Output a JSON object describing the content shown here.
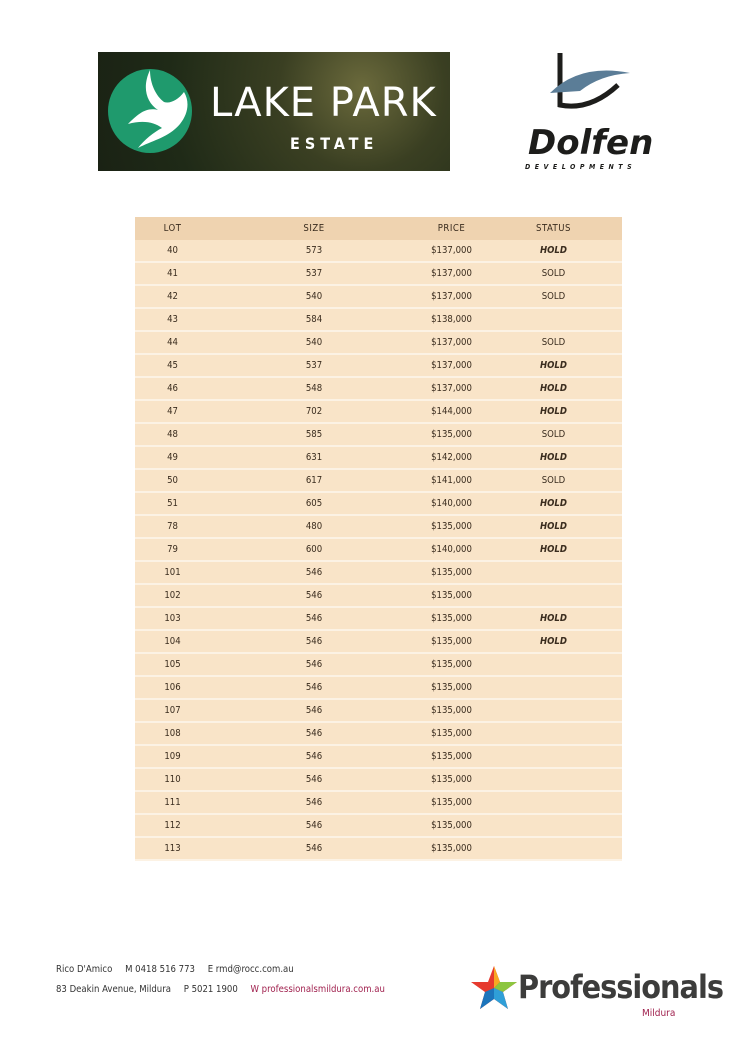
{
  "header": {
    "estate_logo": {
      "title": "LAKE PARK",
      "subtitle": "ESTATE"
    },
    "developer_logo": {
      "name": "Dolfen",
      "subtitle": "DEVELOPMENTS"
    }
  },
  "table": {
    "columns": [
      "LOT",
      "SIZE",
      "PRICE",
      "STATUS"
    ],
    "rows": [
      [
        "40",
        "573",
        "$137,000",
        "HOLD"
      ],
      [
        "41",
        "537",
        "$137,000",
        "SOLD"
      ],
      [
        "42",
        "540",
        "$137,000",
        "SOLD"
      ],
      [
        "43",
        "584",
        "$138,000",
        ""
      ],
      [
        "44",
        "540",
        "$137,000",
        "SOLD"
      ],
      [
        "45",
        "537",
        "$137,000",
        "HOLD"
      ],
      [
        "46",
        "548",
        "$137,000",
        "HOLD"
      ],
      [
        "47",
        "702",
        "$144,000",
        "HOLD"
      ],
      [
        "48",
        "585",
        "$135,000",
        "SOLD"
      ],
      [
        "49",
        "631",
        "$142,000",
        "HOLD"
      ],
      [
        "50",
        "617",
        "$141,000",
        "SOLD"
      ],
      [
        "51",
        "605",
        "$140,000",
        "HOLD"
      ],
      [
        "78",
        "480",
        "$135,000",
        "HOLD"
      ],
      [
        "79",
        "600",
        "$140,000",
        "HOLD"
      ],
      [
        "101",
        "546",
        "$135,000",
        ""
      ],
      [
        "102",
        "546",
        "$135,000",
        ""
      ],
      [
        "103",
        "546",
        "$135,000",
        "HOLD"
      ],
      [
        "104",
        "546",
        "$135,000",
        "HOLD"
      ],
      [
        "105",
        "546",
        "$135,000",
        ""
      ],
      [
        "106",
        "546",
        "$135,000",
        ""
      ],
      [
        "107",
        "546",
        "$135,000",
        ""
      ],
      [
        "108",
        "546",
        "$135,000",
        ""
      ],
      [
        "109",
        "546",
        "$135,000",
        ""
      ],
      [
        "110",
        "546",
        "$135,000",
        ""
      ],
      [
        "111",
        "546",
        "$135,000",
        ""
      ],
      [
        "112",
        "546",
        "$135,000",
        ""
      ],
      [
        "113",
        "546",
        "$135,000",
        ""
      ]
    ]
  },
  "footer": {
    "agent_name": "Rico D'Amico",
    "mobile": "M  0418 516 773",
    "email": "E  rmd@rocc.com.au",
    "address": "83 Deakin Avenue, Mildura",
    "phone": "P  5021 1900",
    "website": "W  professionalsmildura.com.au",
    "agency_logo": {
      "name": "Professionals",
      "subtitle": "Mildura"
    }
  },
  "colors": {
    "header_row": "#efd3b0",
    "body_row": "#f9e4c8",
    "accent": "#a0214e",
    "estate_green": "#1f9a6d"
  }
}
